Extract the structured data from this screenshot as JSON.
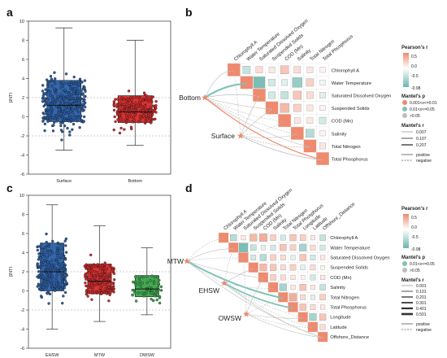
{
  "panels": {
    "a": "a",
    "b": "b",
    "c": "c",
    "d": "d"
  },
  "colors": {
    "blue": "#2a5fa8",
    "red": "#d42a2a",
    "green": "#3aa34a",
    "pos": "#ef8a6e",
    "neg": "#6ab8ad",
    "edge_sig": "#7fc2b6",
    "edge_ns": "#bdbdbd",
    "edge_strong": "#ef8a6e"
  },
  "chart_data": [
    {
      "type": "box",
      "panel": "a",
      "ylabel": "βNTI",
      "categories": [
        "Surface",
        "Bottom"
      ],
      "yticks": [
        -6,
        -4,
        -2,
        0,
        2,
        4,
        6,
        8,
        10
      ],
      "ylim": [
        -6,
        10
      ],
      "ref_lines": [
        2,
        -2
      ],
      "boxes": [
        {
          "name": "Surface",
          "min": -3.5,
          "q1": -0.5,
          "median": 1.2,
          "q3": 3.8,
          "max": 9.3
        },
        {
          "name": "Bottom",
          "min": -3.0,
          "q1": -0.6,
          "median": 0.5,
          "q3": 2.2,
          "max": 8.0
        }
      ]
    },
    {
      "type": "box",
      "panel": "c",
      "ylabel": "βNTI",
      "categories": [
        "EHSW",
        "MTW",
        "OWSW"
      ],
      "yticks": [
        -6,
        -4,
        -2,
        0,
        2,
        4,
        6,
        8,
        10
      ],
      "ylim": [
        -6,
        10
      ],
      "ref_lines": [
        2,
        -2
      ],
      "boxes": [
        {
          "name": "EHSW",
          "min": -4.0,
          "q1": 0.0,
          "median": 2.0,
          "q3": 5.0,
          "max": 9.0
        },
        {
          "name": "MTW",
          "min": -3.2,
          "q1": -0.3,
          "median": 1.0,
          "q3": 2.8,
          "max": 6.8
        },
        {
          "name": "OWSW",
          "min": -2.5,
          "q1": -0.6,
          "median": 0.2,
          "q3": 1.6,
          "max": 4.5
        }
      ]
    },
    {
      "type": "heatmap",
      "panel": "b",
      "variables": [
        "Chlorophyll A",
        "Water Temperature",
        "Saturated Dissolved Oxygen",
        "Suspended Solids",
        "COD (Mn)",
        "Salinity",
        "Total Nitrogen",
        "Total Phosphorus"
      ],
      "correlation_upper": [
        [
          -0.4,
          0.3,
          0.2,
          0.5,
          0.3,
          0.2,
          0.1
        ],
        [
          -0.9,
          -0.3,
          -0.2,
          -0.7,
          0.4,
          -0.1
        ],
        [
          -0.3,
          -0.4,
          0.5,
          0.3,
          -0.2
        ],
        [
          0.6,
          0.4,
          0.2,
          0.1
        ],
        [
          0.2,
          0.2,
          -0.3
        ],
        [
          -0.5,
          0.1
        ],
        [
          0.2
        ]
      ],
      "groups": [
        "Bottom",
        "Surface"
      ],
      "colorbar": {
        "title": "Pearson's r",
        "ticks": [
          "0.5",
          "0.0",
          "-0.5",
          "-0.98"
        ],
        "range": [
          -0.98,
          0.8
        ]
      },
      "mantel_p_legend": {
        "title": "Mantel's p",
        "items": [
          "0.001<x<=0.01",
          "0.01<x<=0.05",
          ">0.05"
        ]
      },
      "mantel_r_legend": {
        "title": "Mantel's r",
        "items": [
          "0.007",
          "0.107",
          "0.207"
        ]
      },
      "line_legend": [
        "positive",
        "negative"
      ]
    },
    {
      "type": "heatmap",
      "panel": "d",
      "variables": [
        "Chlorophyll A",
        "Water Temperature",
        "Saturated Dissolved Oxygen",
        "Suspended Solids",
        "COD (Mn)",
        "Salinity",
        "Total Nitrogen",
        "Total Phosphorus",
        "Longitude",
        "Latitude",
        "Offshore_Distance"
      ],
      "correlation_upper": [
        [
          -0.5,
          0.2,
          0.6,
          0.7,
          0.4,
          -0.3,
          0.5,
          0.4,
          0.2,
          -0.4
        ],
        [
          -0.9,
          -0.4,
          -0.2,
          -0.3,
          0.5,
          0.4,
          -0.6,
          0.3,
          -0.3
        ],
        [
          -0.3,
          -0.5,
          0.4,
          0.3,
          -0.2,
          0.5,
          -0.3,
          0.2
        ],
        [
          0.6,
          0.5,
          0.3,
          0.4,
          -0.2,
          0.3,
          0.1
        ],
        [
          0.4,
          0.3,
          0.2,
          0.1,
          -0.3,
          0.2
        ],
        [
          -0.6,
          0.2,
          0.5,
          0.2,
          -0.4
        ],
        [
          0.7,
          0.3,
          -0.2,
          0.4
        ],
        [
          0.5,
          0.3,
          0.2
        ],
        [
          -0.6,
          0.5
        ],
        [
          0.3
        ]
      ],
      "groups": [
        "MTW",
        "EHSW",
        "OWSW"
      ],
      "colorbar": {
        "title": "Pearson's r",
        "ticks": [
          "0.5",
          "0.0",
          "-0.5",
          "-0.98"
        ],
        "range": [
          -0.98,
          0.8
        ]
      },
      "mantel_p_legend": {
        "title": "Mantel's p",
        "items": [
          "0.01<x<=0.05",
          ">0.05"
        ]
      },
      "mantel_r_legend": {
        "title": "Mantel's r",
        "items": [
          "0.001",
          "0.101",
          "0.201",
          "0.301",
          "0.401",
          "0.501"
        ]
      },
      "line_legend": [
        "positive",
        "negative"
      ]
    }
  ]
}
